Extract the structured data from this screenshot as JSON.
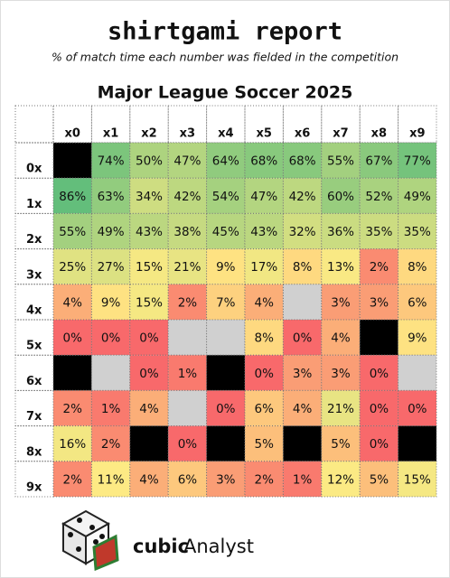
{
  "header": {
    "title": "shirtgami report",
    "subtitle": "% of match time each number was fielded in the competition"
  },
  "chart_data": {
    "type": "heatmap",
    "title": "Major League Soccer 2025",
    "columns": [
      "x0",
      "x1",
      "x2",
      "x3",
      "x4",
      "x5",
      "x6",
      "x7",
      "x8",
      "x9"
    ],
    "colorscale": [
      [
        0,
        "#f8696b"
      ],
      [
        5,
        "#fcbf7b"
      ],
      [
        10,
        "#ffeb84"
      ],
      [
        86,
        "#63be7b"
      ]
    ],
    "rows": [
      {
        "label": "0x",
        "values": [
          null,
          74,
          50,
          47,
          64,
          68,
          68,
          55,
          67,
          77
        ],
        "value_labels": [
          null,
          "74%",
          "50%",
          "47%",
          "64%",
          "68%",
          "68%",
          "55%",
          "67%",
          "77%"
        ],
        "blank": [
          "#000000",
          null,
          null,
          null,
          null,
          null,
          null,
          null,
          null,
          null
        ]
      },
      {
        "label": "1x",
        "values": [
          86,
          63,
          34,
          42,
          54,
          47,
          42,
          60,
          52,
          49
        ],
        "value_labels": [
          "86%",
          "63%",
          "34%",
          "42%",
          "54%",
          "47%",
          "42%",
          "60%",
          "52%",
          "49%"
        ],
        "blank": [
          null,
          null,
          null,
          null,
          null,
          null,
          null,
          null,
          null,
          null
        ]
      },
      {
        "label": "2x",
        "values": [
          55,
          49,
          43,
          38,
          45,
          43,
          32,
          36,
          35,
          35
        ],
        "value_labels": [
          "55%",
          "49%",
          "43%",
          "38%",
          "45%",
          "43%",
          "32%",
          "36%",
          "35%",
          "35%"
        ],
        "blank": [
          null,
          null,
          null,
          null,
          null,
          null,
          null,
          null,
          null,
          null
        ]
      },
      {
        "label": "3x",
        "values": [
          25,
          27,
          15,
          21,
          9,
          17,
          8,
          13,
          2,
          8
        ],
        "value_labels": [
          "25%",
          "27%",
          "15%",
          "21%",
          "9%",
          "17%",
          "8%",
          "13%",
          "2%",
          "8%"
        ],
        "blank": [
          null,
          null,
          null,
          null,
          null,
          null,
          null,
          null,
          null,
          null
        ]
      },
      {
        "label": "4x",
        "values": [
          4,
          9,
          15,
          2,
          7,
          4,
          null,
          3,
          3,
          6
        ],
        "value_labels": [
          "4%",
          "9%",
          "15%",
          "2%",
          "7%",
          "4%",
          null,
          "3%",
          "3%",
          "6%"
        ],
        "blank": [
          null,
          null,
          null,
          null,
          null,
          null,
          "#d0d0d0",
          null,
          null,
          null
        ]
      },
      {
        "label": "5x",
        "values": [
          0,
          0,
          0,
          null,
          null,
          8,
          0,
          4,
          null,
          9
        ],
        "value_labels": [
          "0%",
          "0%",
          "0%",
          null,
          null,
          "8%",
          "0%",
          "4%",
          null,
          "9%"
        ],
        "blank": [
          null,
          null,
          null,
          "#d0d0d0",
          "#d0d0d0",
          null,
          null,
          null,
          "#000000",
          null
        ]
      },
      {
        "label": "6x",
        "values": [
          null,
          null,
          0,
          1,
          null,
          0,
          3,
          3,
          0,
          null
        ],
        "value_labels": [
          null,
          null,
          "0%",
          "1%",
          null,
          "0%",
          "3%",
          "3%",
          "0%",
          null
        ],
        "blank": [
          "#000000",
          "#d0d0d0",
          null,
          null,
          "#000000",
          null,
          null,
          null,
          null,
          "#d0d0d0"
        ]
      },
      {
        "label": "7x",
        "values": [
          2,
          1,
          4,
          null,
          0,
          6,
          4,
          21,
          0,
          0
        ],
        "value_labels": [
          "2%",
          "1%",
          "4%",
          null,
          "0%",
          "6%",
          "4%",
          "21%",
          "0%",
          "0%"
        ],
        "blank": [
          null,
          null,
          null,
          "#d0d0d0",
          null,
          null,
          null,
          null,
          null,
          null
        ]
      },
      {
        "label": "8x",
        "values": [
          16,
          2,
          null,
          0,
          null,
          5,
          null,
          5,
          0,
          null
        ],
        "value_labels": [
          "16%",
          "2%",
          null,
          "0%",
          null,
          "5%",
          null,
          "5%",
          "0%",
          null
        ],
        "blank": [
          null,
          null,
          "#000000",
          null,
          "#000000",
          null,
          "#000000",
          null,
          null,
          "#000000"
        ]
      },
      {
        "label": "9x",
        "values": [
          2,
          11,
          4,
          6,
          3,
          2,
          1,
          12,
          5,
          15
        ],
        "value_labels": [
          "2%",
          "11%",
          "4%",
          "6%",
          "3%",
          "2%",
          "1%",
          "12%",
          "5%",
          "15%"
        ],
        "blank": [
          null,
          null,
          null,
          null,
          null,
          null,
          null,
          null,
          null,
          null
        ]
      }
    ]
  },
  "logo": {
    "bold": "cubic",
    "regular": "Analyst"
  }
}
